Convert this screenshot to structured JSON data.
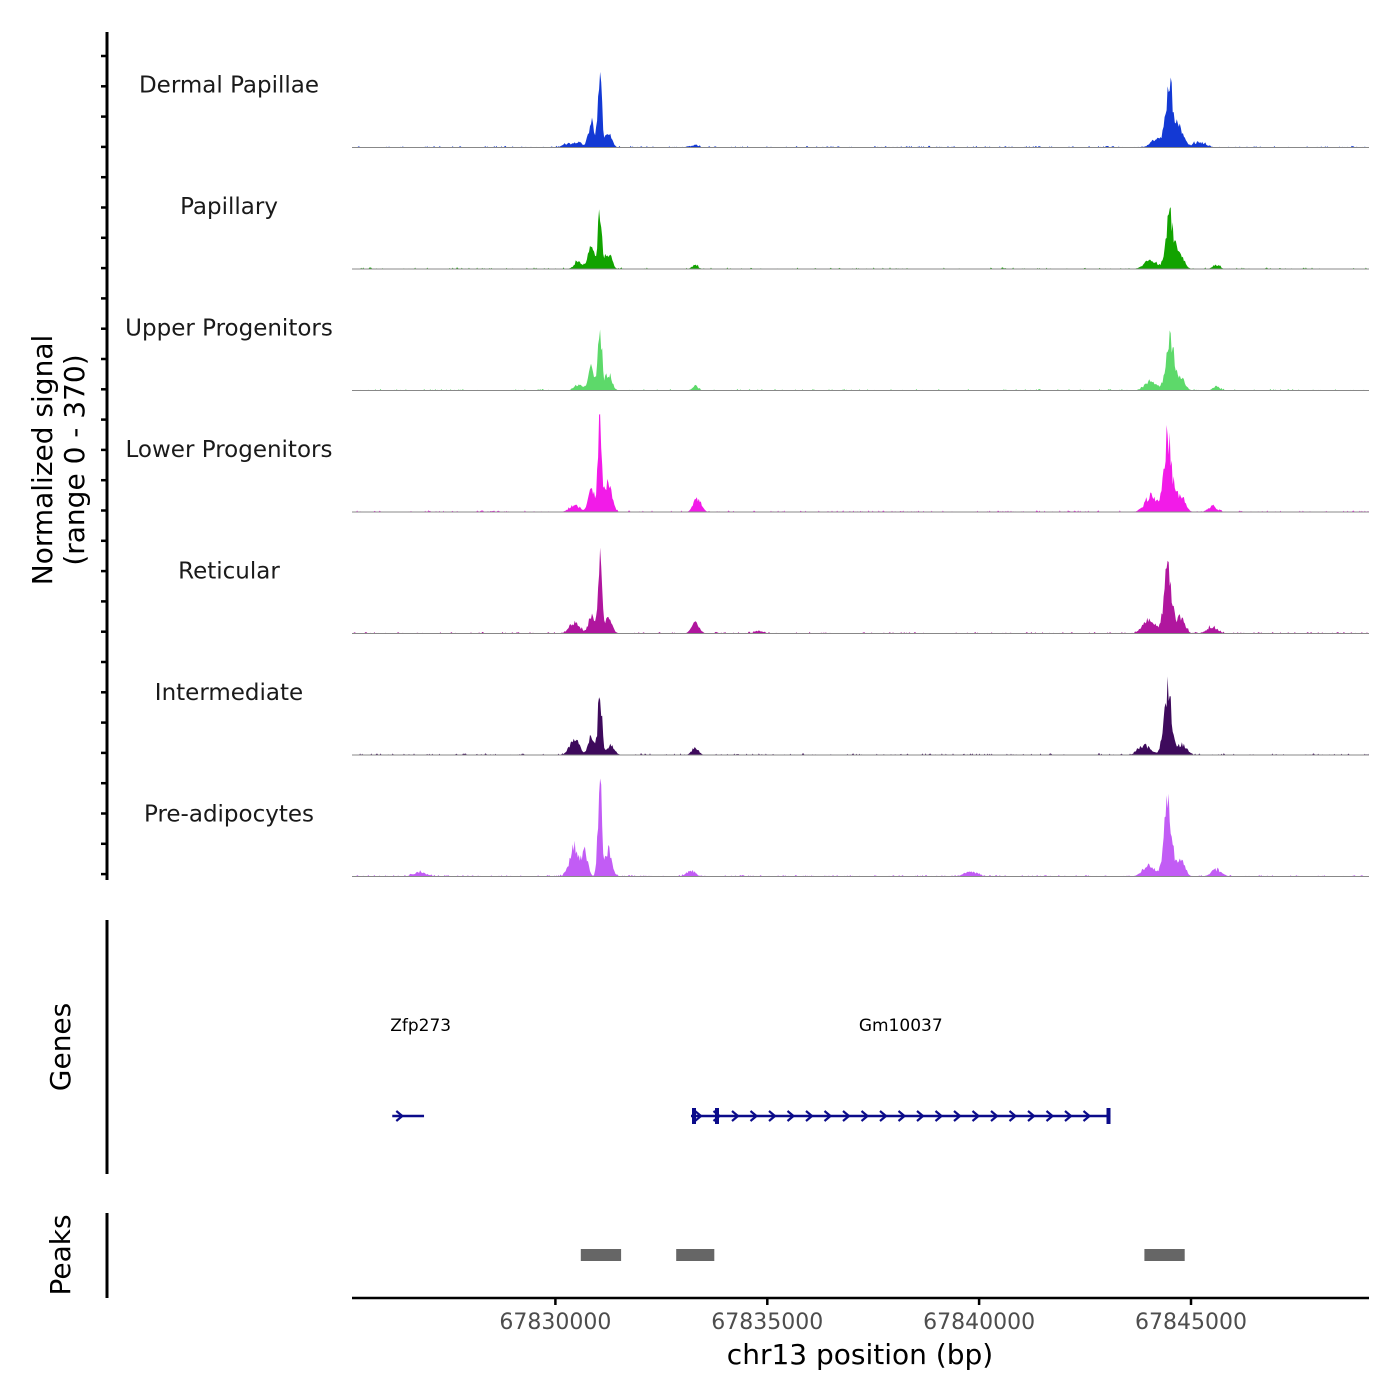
{
  "chart_data": {
    "type": "area",
    "title": "",
    "xlabel": "chr13 position (bp)",
    "ylabel": "Normalized signal",
    "ylabel_sub": "(range 0 - 370)",
    "ylim": [
      0,
      370
    ],
    "xlim": [
      67825200,
      67849200
    ],
    "x_ticks": [
      67830000,
      67835000,
      67840000,
      67845000
    ],
    "x_tick_labels": [
      "67830000",
      "67835000",
      "67840000",
      "67845000"
    ],
    "tracks": [
      {
        "name": "Dermal Papillae",
        "color": "#1339D4",
        "peaks": [
          [
            67830300,
            15,
            120
          ],
          [
            67830550,
            22,
            80
          ],
          [
            67830850,
            100,
            70
          ],
          [
            67831050,
            262,
            45
          ],
          [
            67831250,
            50,
            80
          ],
          [
            67833300,
            10,
            80
          ],
          [
            67844200,
            30,
            140
          ],
          [
            67844500,
            220,
            90
          ],
          [
            67844750,
            70,
            90
          ],
          [
            67845200,
            20,
            150
          ]
        ],
        "noise": 0.3
      },
      {
        "name": "Papillary",
        "color": "#12A300",
        "peaks": [
          [
            67830550,
            28,
            100
          ],
          [
            67830850,
            90,
            70
          ],
          [
            67831050,
            228,
            45
          ],
          [
            67831250,
            60,
            80
          ],
          [
            67833300,
            15,
            70
          ],
          [
            67844050,
            35,
            140
          ],
          [
            67844500,
            200,
            90
          ],
          [
            67844750,
            45,
            100
          ],
          [
            67845600,
            15,
            80
          ]
        ],
        "noise": 0.2
      },
      {
        "name": "Upper Progenitors",
        "color": "#5DD96A",
        "peaks": [
          [
            67830550,
            22,
            100
          ],
          [
            67830850,
            80,
            70
          ],
          [
            67831050,
            238,
            45
          ],
          [
            67831250,
            65,
            80
          ],
          [
            67833300,
            18,
            70
          ],
          [
            67844050,
            35,
            140
          ],
          [
            67844500,
            200,
            90
          ],
          [
            67844750,
            50,
            100
          ],
          [
            67845600,
            15,
            80
          ]
        ],
        "noise": 0.18
      },
      {
        "name": "Lower Progenitors",
        "color": "#F21BE8",
        "peaks": [
          [
            67830450,
            25,
            120
          ],
          [
            67830850,
            90,
            70
          ],
          [
            67831050,
            370,
            45
          ],
          [
            67831250,
            110,
            80
          ],
          [
            67833350,
            50,
            90
          ],
          [
            67844050,
            60,
            140
          ],
          [
            67844450,
            290,
            90
          ],
          [
            67844750,
            70,
            100
          ],
          [
            67845500,
            20,
            100
          ]
        ],
        "noise": 0.28
      },
      {
        "name": "Reticular",
        "color": "#B0169E",
        "peaks": [
          [
            67830450,
            40,
            120
          ],
          [
            67830850,
            65,
            70
          ],
          [
            67831050,
            260,
            45
          ],
          [
            67831250,
            60,
            80
          ],
          [
            67833300,
            40,
            90
          ],
          [
            67834800,
            10,
            100
          ],
          [
            67844000,
            50,
            140
          ],
          [
            67844450,
            230,
            90
          ],
          [
            67844750,
            60,
            100
          ],
          [
            67845500,
            25,
            120
          ]
        ],
        "noise": 0.25
      },
      {
        "name": "Intermediate",
        "color": "#3E0A5C",
        "peaks": [
          [
            67830450,
            62,
            110
          ],
          [
            67830850,
            70,
            70
          ],
          [
            67831050,
            238,
            45
          ],
          [
            67831300,
            35,
            90
          ],
          [
            67833300,
            25,
            80
          ],
          [
            67843900,
            35,
            140
          ],
          [
            67844450,
            245,
            90
          ],
          [
            67844800,
            40,
            100
          ]
        ],
        "noise": 0.25
      },
      {
        "name": "Pre-adipocytes",
        "color": "#C25CF5",
        "peaks": [
          [
            67826800,
            15,
            150
          ],
          [
            67830450,
            110,
            110
          ],
          [
            67830700,
            80,
            70
          ],
          [
            67831050,
            345,
            45
          ],
          [
            67831250,
            100,
            80
          ],
          [
            67833200,
            22,
            100
          ],
          [
            67839800,
            18,
            150
          ],
          [
            67844000,
            40,
            140
          ],
          [
            67844450,
            260,
            90
          ],
          [
            67844750,
            60,
            100
          ],
          [
            67845600,
            25,
            120
          ]
        ],
        "noise": 0.35
      }
    ],
    "genes": [
      {
        "name": "Zfp273",
        "start": 67826150,
        "end": 67826900,
        "strand": "+"
      },
      {
        "name": "Gm10037",
        "start": 67833200,
        "end": 67843100,
        "strand": "+"
      }
    ],
    "peak_regions": [
      [
        67830600,
        67831550
      ],
      [
        67832850,
        67833750
      ],
      [
        67843900,
        67844850
      ]
    ],
    "panel_titles": {
      "genes": "Genes",
      "peaks": "Peaks"
    },
    "colors": {
      "axis": "#000000",
      "baseline": "#888888",
      "gene": "#0B0B8A",
      "peak_region": "#666666",
      "tick_label": "#4D4D4D"
    }
  }
}
